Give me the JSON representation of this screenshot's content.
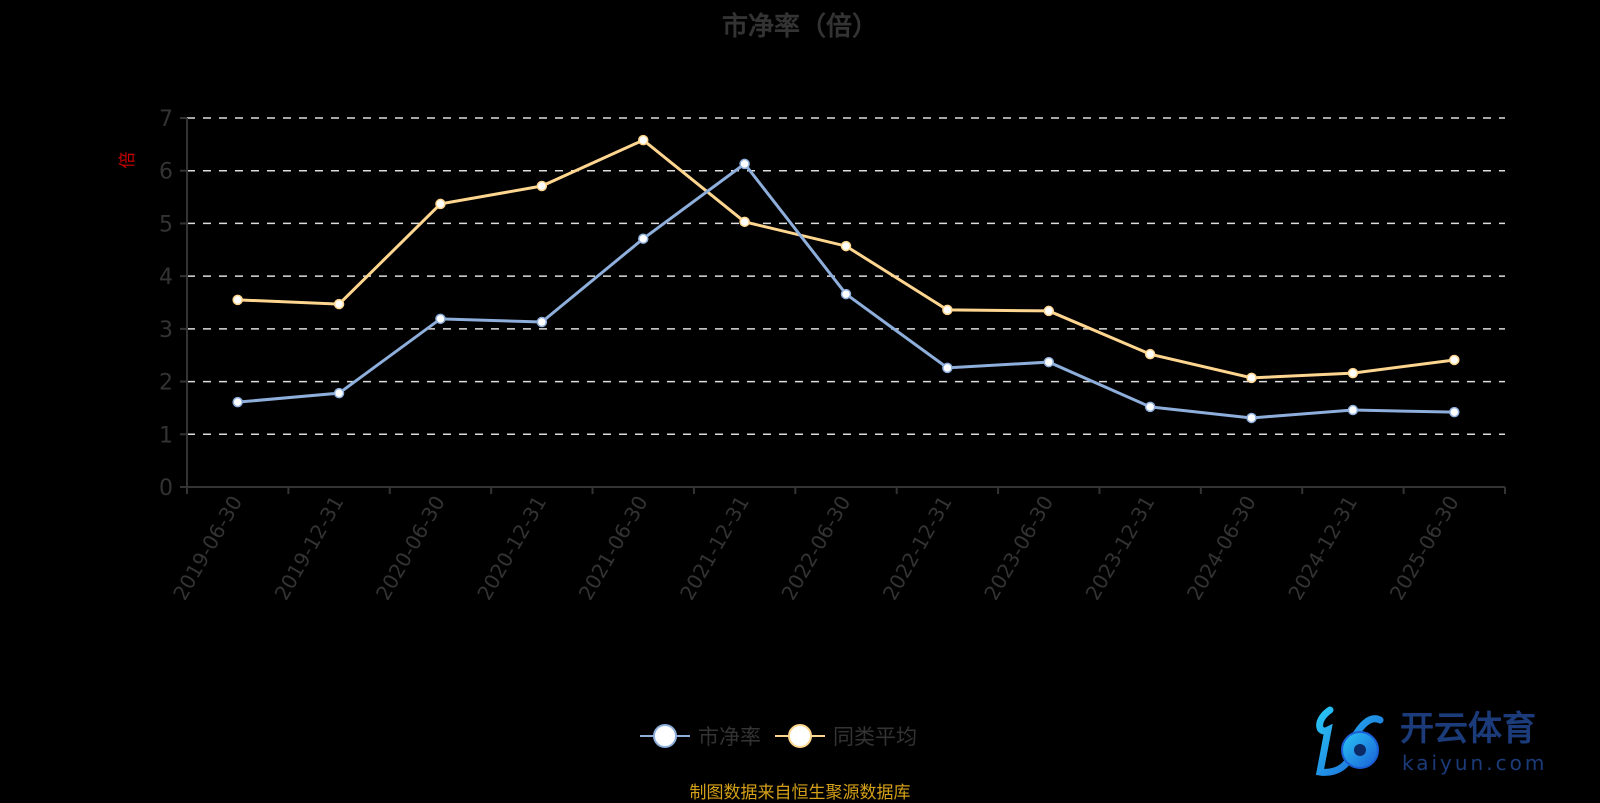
{
  "chart_data": {
    "type": "line",
    "title": "市净率（倍）",
    "ylabel": "倍",
    "xlabel": "",
    "ylim": [
      0,
      7
    ],
    "yticks": [
      "0",
      "1",
      "2",
      "3",
      "4",
      "5",
      "6",
      "7"
    ],
    "grid": true,
    "legend_position": "bottom",
    "categories": [
      "2019-06-30",
      "2019-12-31",
      "2020-06-30",
      "2020-12-31",
      "2021-06-30",
      "2021-12-31",
      "2022-06-30",
      "2022-12-31",
      "2023-06-30",
      "2023-12-31",
      "2024-06-30",
      "2024-12-31",
      "2025-06-30"
    ],
    "series": [
      {
        "name": "市净率",
        "color": "#8eaedb",
        "values": [
          1.61,
          1.78,
          3.19,
          3.13,
          4.71,
          6.13,
          3.66,
          2.26,
          2.37,
          1.52,
          1.31,
          1.46,
          1.42
        ]
      },
      {
        "name": "同类平均",
        "color": "#ffd68f",
        "values": [
          3.55,
          3.47,
          5.37,
          5.71,
          6.58,
          5.03,
          4.57,
          3.36,
          3.34,
          2.52,
          2.07,
          2.16,
          2.41
        ]
      }
    ]
  },
  "footer": "制图数据来自恒生聚源数据库",
  "logo": {
    "cn": "开云体育",
    "en": "kaiyun.com"
  }
}
